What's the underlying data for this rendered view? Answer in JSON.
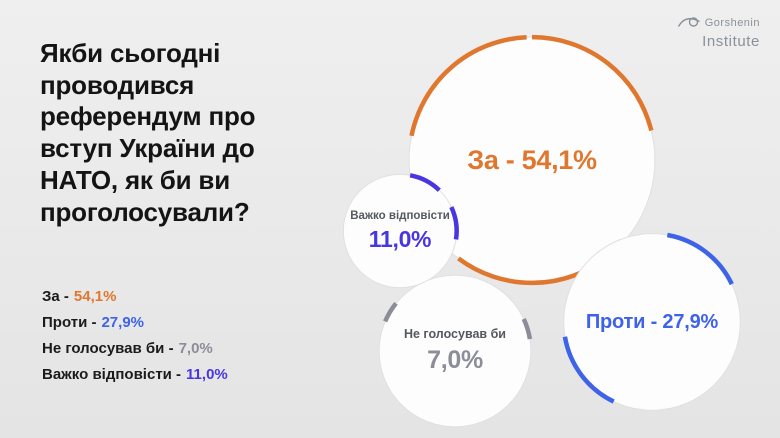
{
  "headline": "Якби сьогодні\nпроводився\nреферендум про\nвступ України до\nНАТО, як би ви\nпроголосували?",
  "logo": {
    "line1": "Gorshenin",
    "line2": "Institute"
  },
  "legend": [
    {
      "label": "За -",
      "value": "54,1%",
      "color": "#E0772F"
    },
    {
      "label": "Проти -",
      "value": "27,9%",
      "color": "#3E63E8"
    },
    {
      "label": "Не голосував би -",
      "value": "7,0%",
      "color": "#8D8D99"
    },
    {
      "label": "Важко відповісти -",
      "value": "11,0%",
      "color": "#4836E0"
    }
  ],
  "bubbles": [
    {
      "id": "za",
      "pct": 54.1,
      "color": "#E0772F",
      "label": "За - 54,1%"
    },
    {
      "id": "proty",
      "pct": 27.9,
      "color": "#3E63E8",
      "label": "Проти - 27,9%"
    },
    {
      "id": "vazhko",
      "pct": 11.0,
      "color": "#4836E0",
      "title": "Важко відповісти",
      "value": "11,0%"
    },
    {
      "id": "ne",
      "pct": 7.0,
      "color": "#8D8D99",
      "title": "Не голосував би",
      "value": "7,0%"
    }
  ],
  "chart_data": {
    "type": "pie",
    "variant": "bubble",
    "title": "Якби сьогодні проводився референдум про вступ України до НАТО, як би ви проголосували?",
    "categories": [
      "За",
      "Проти",
      "Не голосував би",
      "Важко відповісти"
    ],
    "values": [
      54.1,
      27.9,
      7.0,
      11.0
    ],
    "unit": "%",
    "colors": [
      "#E0772F",
      "#3E63E8",
      "#8D8D99",
      "#4836E0"
    ],
    "legend_position": "bottom-left",
    "source": "Gorshenin Institute"
  }
}
